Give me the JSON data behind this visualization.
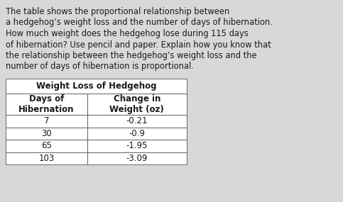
{
  "paragraph_lines": [
    "The table shows the proportional relationship between",
    "a hedgehog’s weight loss and the number of days of hibernation.",
    "How much weight does the hedgehog lose during 115 days",
    "of hibernation? Use pencil and paper. Explain how you know that",
    "the relationship between the hedgehog’s weight loss and the",
    "number of days of hibernation is proportional."
  ],
  "table_title": "Weight Loss of Hedgehog",
  "col1_header_line1": "Days of",
  "col1_header_line2": "Hibernation",
  "col2_header_line1": "Change in",
  "col2_header_line2": "Weight (oz)",
  "rows": [
    [
      "7",
      "-0.21"
    ],
    [
      "30",
      "-0.9"
    ],
    [
      "65",
      "-1.95"
    ],
    [
      "103",
      "-3.09"
    ]
  ],
  "bg_color": "#d8d8d8",
  "table_bg": "#ffffff",
  "text_color": "#1a1a1a",
  "font_size_paragraph": 8.3,
  "font_size_table": 8.5
}
